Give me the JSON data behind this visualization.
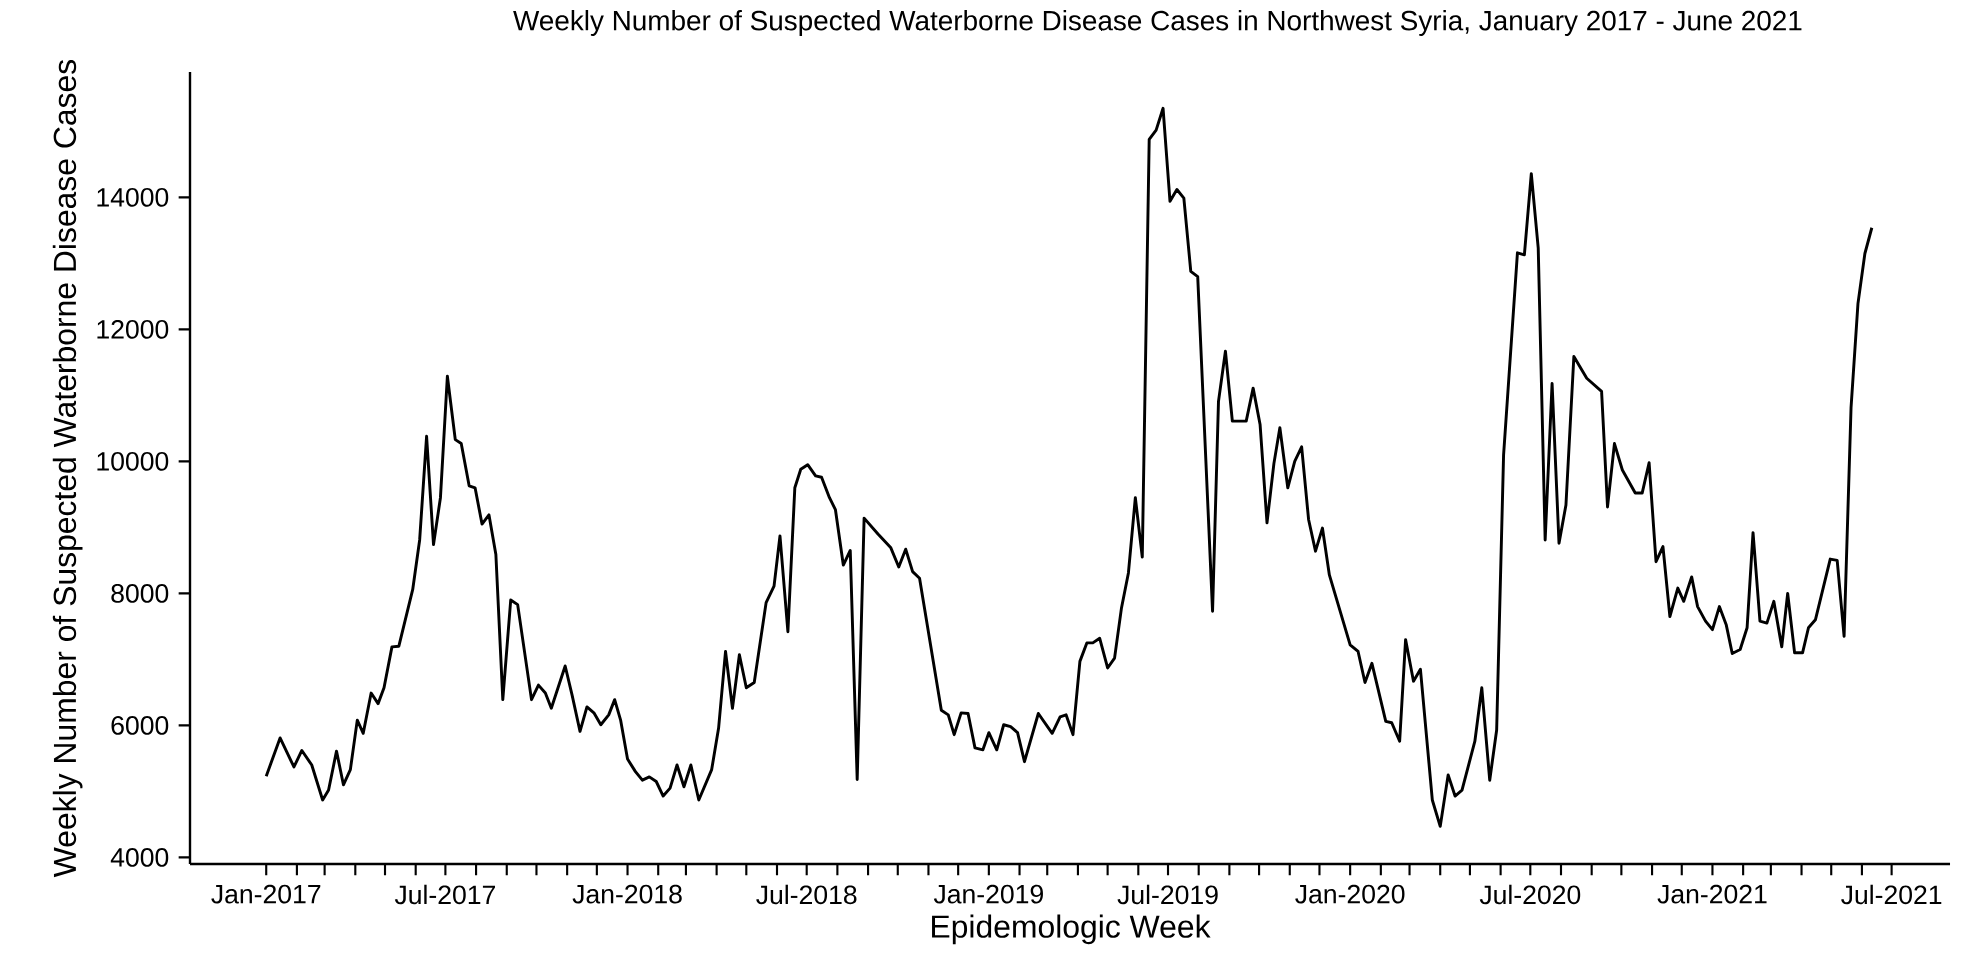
{
  "chart_data": {
    "type": "line",
    "title": "Weekly Number of Suspected Waterborne Disease Cases in Northwest Syria, January 2017 - June 2021",
    "xlabel": "Epidemologic Week",
    "ylabel": "Weekly Number of Suspected Waterborne Disease Cases",
    "x": [
      "2017-01-01",
      "2017-01-15",
      "2017-01-29",
      "2017-02-06",
      "2017-02-16",
      "2017-02-27",
      "2017-03-05",
      "2017-03-13",
      "2017-03-20",
      "2017-03-27",
      "2017-04-03",
      "2017-04-09",
      "2017-04-17",
      "2017-04-24",
      "2017-04-30",
      "2017-05-08",
      "2017-05-15",
      "2017-05-29",
      "2017-06-05",
      "2017-06-12",
      "2017-06-19",
      "2017-06-26",
      "2017-07-03",
      "2017-07-11",
      "2017-07-17",
      "2017-07-25",
      "2017-07-31",
      "2017-08-07",
      "2017-08-14",
      "2017-08-21",
      "2017-08-28",
      "2017-09-05",
      "2017-09-12",
      "2017-09-26",
      "2017-10-03",
      "2017-10-10",
      "2017-10-16",
      "2017-10-30",
      "2017-11-06",
      "2017-11-14",
      "2017-11-21",
      "2017-11-28",
      "2017-12-05",
      "2017-12-13",
      "2017-12-19",
      "2017-12-25",
      "2018-01-01",
      "2018-01-09",
      "2018-01-16",
      "2018-01-23",
      "2018-01-30",
      "2018-02-06",
      "2018-02-13",
      "2018-02-20",
      "2018-02-27",
      "2018-03-06",
      "2018-03-14",
      "2018-03-27",
      "2018-04-03",
      "2018-04-10",
      "2018-04-17",
      "2018-04-24",
      "2018-05-01",
      "2018-05-09",
      "2018-05-21",
      "2018-05-29",
      "2018-06-04",
      "2018-06-12",
      "2018-06-19",
      "2018-06-25",
      "2018-07-02",
      "2018-07-10",
      "2018-07-16",
      "2018-07-24",
      "2018-07-30",
      "2018-08-07",
      "2018-08-14",
      "2018-08-21",
      "2018-08-28",
      "2018-09-11",
      "2018-09-24",
      "2018-10-02",
      "2018-10-09",
      "2018-10-16",
      "2018-10-23",
      "2018-11-14",
      "2018-11-21",
      "2018-11-27",
      "2018-12-04",
      "2018-12-11",
      "2018-12-18",
      "2018-12-26",
      "2019-01-01",
      "2019-01-09",
      "2019-01-16",
      "2019-01-23",
      "2019-01-30",
      "2019-02-06",
      "2019-02-20",
      "2019-03-06",
      "2019-03-14",
      "2019-03-20",
      "2019-03-27",
      "2019-04-03",
      "2019-04-10",
      "2019-04-16",
      "2019-04-23",
      "2019-05-01",
      "2019-05-08",
      "2019-05-15",
      "2019-05-22",
      "2019-05-29",
      "2019-06-05",
      "2019-06-12",
      "2019-06-19",
      "2019-06-26",
      "2019-07-03",
      "2019-07-10",
      "2019-07-17",
      "2019-07-24",
      "2019-07-31",
      "2019-08-15",
      "2019-08-21",
      "2019-08-28",
      "2019-09-04",
      "2019-09-18",
      "2019-09-25",
      "2019-10-02",
      "2019-10-09",
      "2019-10-16",
      "2019-10-22",
      "2019-10-30",
      "2019-11-06",
      "2019-11-13",
      "2019-11-20",
      "2019-11-27",
      "2019-12-04",
      "2019-12-11",
      "2020-01-01",
      "2020-01-09",
      "2020-01-16",
      "2020-01-23",
      "2020-02-06",
      "2020-02-12",
      "2020-02-20",
      "2020-02-26",
      "2020-03-05",
      "2020-03-12",
      "2020-03-24",
      "2020-04-01",
      "2020-04-09",
      "2020-04-16",
      "2020-04-23",
      "2020-05-06",
      "2020-05-13",
      "2020-05-21",
      "2020-05-28",
      "2020-06-04",
      "2020-06-18",
      "2020-06-25",
      "2020-07-02",
      "2020-07-09",
      "2020-07-16",
      "2020-07-23",
      "2020-07-30",
      "2020-08-06",
      "2020-08-14",
      "2020-08-27",
      "2020-09-11",
      "2020-09-17",
      "2020-09-24",
      "2020-10-02",
      "2020-10-15",
      "2020-10-22",
      "2020-10-29",
      "2020-11-05",
      "2020-11-12",
      "2020-11-19",
      "2020-11-27",
      "2020-12-03",
      "2020-12-11",
      "2020-12-17",
      "2020-12-25",
      "2021-01-01",
      "2021-01-08",
      "2021-01-15",
      "2021-01-21",
      "2021-01-29",
      "2021-02-05",
      "2021-02-11",
      "2021-02-18",
      "2021-02-25",
      "2021-03-04",
      "2021-03-12",
      "2021-03-18",
      "2021-03-25",
      "2021-04-02",
      "2021-04-08",
      "2021-04-15",
      "2021-04-30",
      "2021-05-07",
      "2021-05-14",
      "2021-05-21",
      "2021-05-28",
      "2021-06-04",
      "2021-06-11"
    ],
    "series": [
      {
        "color": "#000000",
        "values": [
          5230,
          5810,
          5370,
          5620,
          5400,
          4870,
          5020,
          5610,
          5100,
          5330,
          6080,
          5880,
          6490,
          6330,
          6570,
          7190,
          7200,
          8060,
          8810,
          10380,
          8740,
          9450,
          11290,
          10330,
          10270,
          9630,
          9600,
          9050,
          9190,
          8590,
          6390,
          7900,
          7830,
          6390,
          6610,
          6490,
          6260,
          6900,
          6460,
          5910,
          6280,
          6190,
          6010,
          6160,
          6390,
          6080,
          5490,
          5300,
          5170,
          5220,
          5150,
          4930,
          5050,
          5400,
          5070,
          5400,
          4870,
          5330,
          5960,
          7120,
          6260,
          7070,
          6570,
          6650,
          7860,
          8110,
          8870,
          7420,
          9600,
          9880,
          9950,
          9780,
          9760,
          9450,
          9270,
          8430,
          8650,
          5180,
          9140,
          8900,
          8690,
          8400,
          8670,
          8330,
          8230,
          6230,
          6160,
          5860,
          6190,
          6180,
          5660,
          5630,
          5890,
          5630,
          6010,
          5980,
          5890,
          5450,
          6180,
          5880,
          6130,
          6160,
          5860,
          6970,
          7250,
          7250,
          7320,
          6870,
          7020,
          7780,
          8310,
          9450,
          8550,
          14880,
          15020,
          15350,
          13940,
          14120,
          13990,
          12880,
          12800,
          7730,
          10910,
          11670,
          10610,
          10610,
          11110,
          10560,
          9070,
          9970,
          10510,
          9600,
          10000,
          10220,
          9120,
          8640,
          8990,
          8280,
          7220,
          7120,
          6650,
          6940,
          6060,
          6040,
          5760,
          7300,
          6670,
          6850,
          4870,
          4470,
          5250,
          4930,
          5020,
          5760,
          6570,
          5170,
          5930,
          10100,
          13160,
          13130,
          14360,
          13230,
          8810,
          11180,
          8760,
          9340,
          11590,
          11260,
          11060,
          9310,
          10270,
          9870,
          9520,
          9520,
          9980,
          8480,
          8710,
          7650,
          8080,
          7880,
          8250,
          7800,
          7580,
          7450,
          7800,
          7520,
          7090,
          7150,
          7480,
          8920,
          7580,
          7550,
          7880,
          7190,
          8000,
          7100,
          7100,
          7480,
          7600,
          8520,
          8500,
          7350,
          10810,
          12390,
          13150,
          13540
        ]
      }
    ],
    "xlim": [
      "2016-10-16",
      "2021-08-29"
    ],
    "ylim": [
      3900,
      15900
    ],
    "xticks": [
      {
        "value": "2017-01-01",
        "label": "Jan-2017"
      },
      {
        "value": "2017-07-01",
        "label": "Jul-2017"
      },
      {
        "value": "2018-01-01",
        "label": "Jan-2018"
      },
      {
        "value": "2018-07-01",
        "label": "Jul-2018"
      },
      {
        "value": "2019-01-01",
        "label": "Jan-2019"
      },
      {
        "value": "2019-07-01",
        "label": "Jul-2019"
      },
      {
        "value": "2020-01-01",
        "label": "Jan-2020"
      },
      {
        "value": "2020-07-01",
        "label": "Jul-2020"
      },
      {
        "value": "2021-01-01",
        "label": "Jan-2021"
      },
      {
        "value": "2021-07-01",
        "label": "Jul-2021"
      },
      {
        "value": "2017-02-01",
        "label": null
      },
      {
        "value": "2017-03-01",
        "label": null
      },
      {
        "value": "2017-04-01",
        "label": null
      },
      {
        "value": "2017-05-01",
        "label": null
      },
      {
        "value": "2017-06-01",
        "label": null
      },
      {
        "value": "2017-08-01",
        "label": null
      },
      {
        "value": "2017-09-01",
        "label": null
      },
      {
        "value": "2017-10-01",
        "label": null
      },
      {
        "value": "2017-11-01",
        "label": null
      },
      {
        "value": "2017-12-01",
        "label": null
      },
      {
        "value": "2018-02-01",
        "label": null
      },
      {
        "value": "2018-03-01",
        "label": null
      },
      {
        "value": "2018-04-01",
        "label": null
      },
      {
        "value": "2018-05-01",
        "label": null
      },
      {
        "value": "2018-06-01",
        "label": null
      },
      {
        "value": "2018-08-01",
        "label": null
      },
      {
        "value": "2018-09-01",
        "label": null
      },
      {
        "value": "2018-10-01",
        "label": null
      },
      {
        "value": "2018-11-01",
        "label": null
      },
      {
        "value": "2018-12-01",
        "label": null
      },
      {
        "value": "2019-02-01",
        "label": null
      },
      {
        "value": "2019-03-01",
        "label": null
      },
      {
        "value": "2019-04-01",
        "label": null
      },
      {
        "value": "2019-05-01",
        "label": null
      },
      {
        "value": "2019-06-01",
        "label": null
      },
      {
        "value": "2019-08-01",
        "label": null
      },
      {
        "value": "2019-09-01",
        "label": null
      },
      {
        "value": "2019-10-01",
        "label": null
      },
      {
        "value": "2019-11-01",
        "label": null
      },
      {
        "value": "2019-12-01",
        "label": null
      },
      {
        "value": "2020-02-01",
        "label": null
      },
      {
        "value": "2020-03-01",
        "label": null
      },
      {
        "value": "2020-04-01",
        "label": null
      },
      {
        "value": "2020-05-01",
        "label": null
      },
      {
        "value": "2020-06-01",
        "label": null
      },
      {
        "value": "2020-08-01",
        "label": null
      },
      {
        "value": "2020-09-01",
        "label": null
      },
      {
        "value": "2020-10-01",
        "label": null
      },
      {
        "value": "2020-11-01",
        "label": null
      },
      {
        "value": "2020-12-01",
        "label": null
      },
      {
        "value": "2021-02-01",
        "label": null
      },
      {
        "value": "2021-03-01",
        "label": null
      },
      {
        "value": "2021-04-01",
        "label": null
      },
      {
        "value": "2021-05-01",
        "label": null
      },
      {
        "value": "2021-06-01",
        "label": null
      }
    ],
    "yticks": [
      4000,
      6000,
      8000,
      10000,
      12000,
      14000
    ],
    "grid": false,
    "marker": "none",
    "line_style": "solid"
  }
}
